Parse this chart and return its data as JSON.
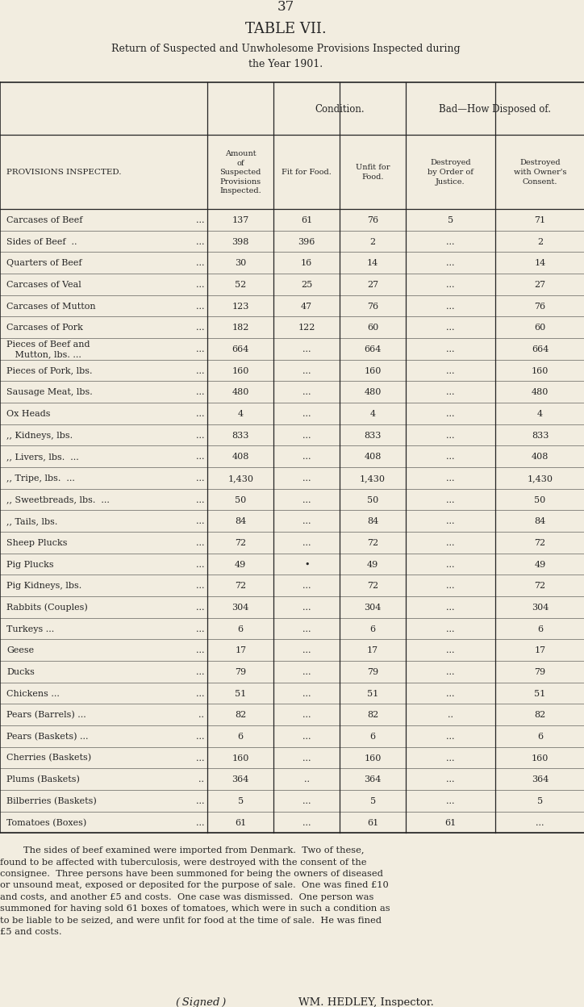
{
  "page_number": "37",
  "title": "TABLE VII.",
  "subtitle_line1": "Return of Suspected and Unwholesome Provisions Inspected during",
  "subtitle_line2": "the Year 1901.",
  "bg_color": "#f2ede0",
  "text_color": "#252525",
  "rows": [
    [
      "Carcases of Beef",
      "...",
      "137",
      "61",
      "76",
      "5",
      "71"
    ],
    [
      "Sides of Beef  ..",
      "...",
      "398",
      "396",
      "2",
      "...",
      "2"
    ],
    [
      "Quarters of Beef",
      "...",
      "30",
      "16",
      "14",
      "...",
      "14"
    ],
    [
      "Carcases of Veal",
      "...",
      "52",
      "25",
      "27",
      "...",
      "27"
    ],
    [
      "Carcases of Mutton",
      "...",
      "123",
      "47",
      "76",
      "...",
      "76"
    ],
    [
      "Carcases of Pork",
      "...",
      "182",
      "122",
      "60",
      "...",
      "60"
    ],
    [
      "Pieces of Beef and",
      "",
      "",
      "",
      "",
      "",
      ""
    ],
    [
      "   Mutton, lbs. ...",
      "...",
      "664",
      "...",
      "664",
      "...",
      "664"
    ],
    [
      "Pieces of Pork, lbs.",
      "...",
      "160",
      "...",
      "160",
      "...",
      "160"
    ],
    [
      "Sausage Meat, lbs.",
      "...",
      "480",
      "...",
      "480",
      "...",
      "480"
    ],
    [
      "Ox Heads",
      "...",
      "4",
      "...",
      "4",
      "...",
      "4"
    ],
    [
      ",, Kidneys, lbs.",
      "...",
      "833",
      "...",
      "833",
      "...",
      "833"
    ],
    [
      ",, Livers, lbs.  ...",
      "...",
      "408",
      "...",
      "408",
      "...",
      "408"
    ],
    [
      ",, Tripe, lbs.  ...",
      "...",
      "1,430",
      "...",
      "1,430",
      "...",
      "1,430"
    ],
    [
      ",, Sweetbreads, lbs.  ...",
      "...",
      "50",
      "...",
      "50",
      "...",
      "50"
    ],
    [
      ",, Tails, lbs.",
      "...",
      "84",
      "...",
      "84",
      "...",
      "84"
    ],
    [
      "Sheep Plucks",
      "...",
      "72",
      "...",
      "72",
      "...",
      "72"
    ],
    [
      "Pig Plucks",
      "...",
      "49",
      "•",
      "49",
      "...",
      "49"
    ],
    [
      "Pig Kidneys, lbs.",
      "...",
      "72",
      "...",
      "72",
      "...",
      "72"
    ],
    [
      "Rabbits (Couples)",
      "...",
      "304",
      "...",
      "304",
      "...",
      "304"
    ],
    [
      "Turkeys ...",
      "...",
      "6",
      "...",
      "6",
      "...",
      "6"
    ],
    [
      "Geese",
      "...",
      "17",
      "...",
      "17",
      "...",
      "17"
    ],
    [
      "Ducks",
      "...",
      "79",
      "...",
      "79",
      "...",
      "79"
    ],
    [
      "Chickens ...",
      "...",
      "51",
      "...",
      "51",
      "...",
      "51"
    ],
    [
      "Pears (Barrels) ...",
      "..",
      "82",
      "...",
      "82",
      "..",
      "82"
    ],
    [
      "Pears (Baskets) ...",
      "...",
      "6",
      "...",
      "6",
      "...",
      "6"
    ],
    [
      "Cherries (Baskets)",
      "...",
      "160",
      "...",
      "160",
      "...",
      "160"
    ],
    [
      "Plums (Baskets)",
      "..",
      "364",
      "..",
      "364",
      "...",
      "364"
    ],
    [
      "Bilberries (Baskets)",
      "...",
      "5",
      "...",
      "5",
      "...",
      "5"
    ],
    [
      "Tomatoes (Boxes)",
      "...",
      "61",
      "...",
      "61",
      "61",
      "..."
    ]
  ],
  "footnote": "        The sides of beef examined were imported from Denmark.  Two of these,\nfound to be affected with tuberculosis, were destroyed with the consent of the\nconsignee.  Three persons have been summoned for being the owners of diseased\nor unsound meat, exposed or deposited for the purpose of sale.  One was fined £10\nand costs, and another £5 and costs.  One case was dismissed.  One person was\nsummoned for having sold 61 boxes of tomatoes, which were in such a condition as\nto be liable to be seized, and were unfit for food at the time of sale.  He was fined\n£5 and costs."
}
